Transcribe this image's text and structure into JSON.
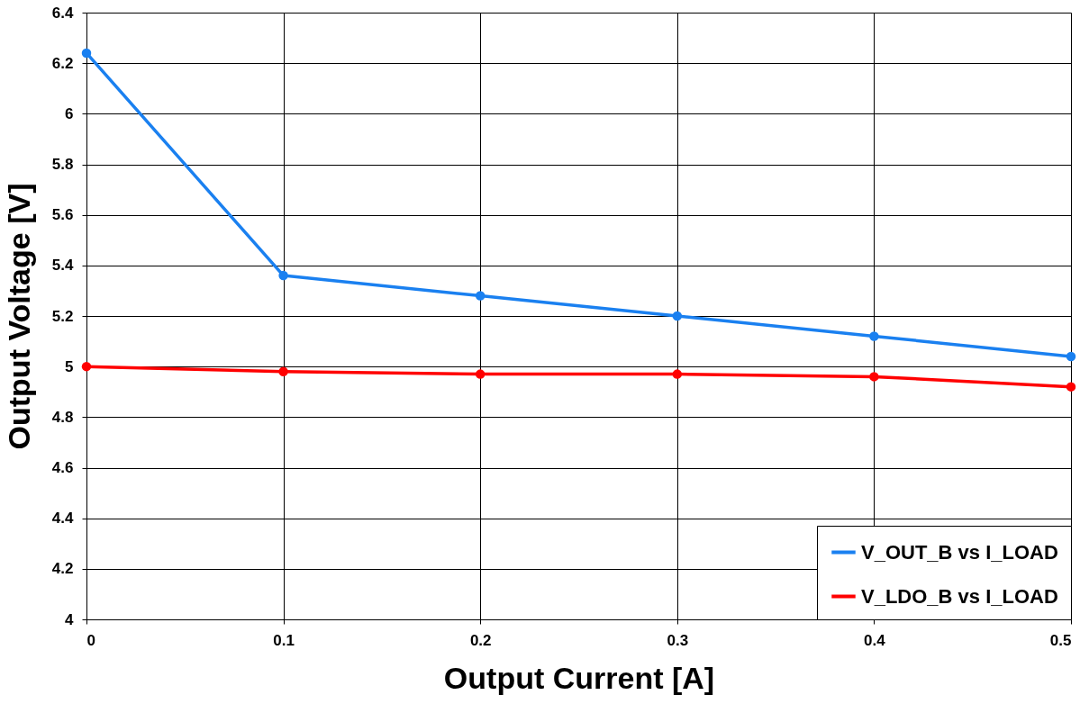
{
  "chart_data": {
    "type": "line",
    "xlabel": "Output Current [A]",
    "ylabel": "Output Voltage [V]",
    "x": [
      0,
      0.1,
      0.2,
      0.3,
      0.4,
      0.5
    ],
    "series": [
      {
        "name": "V_OUT_B vs I_LOAD",
        "color": "#1a80f0",
        "values": [
          6.24,
          5.36,
          5.28,
          5.2,
          5.12,
          5.04
        ]
      },
      {
        "name": "V_LDO_B vs I_LOAD",
        "color": "#ff0000",
        "values": [
          5.0,
          4.98,
          4.97,
          4.97,
          4.96,
          4.92
        ]
      }
    ],
    "xlim": [
      0,
      0.5
    ],
    "xticks": [
      0,
      0.1,
      0.2,
      0.3,
      0.4,
      0.5
    ],
    "ylim": [
      4,
      6.4
    ],
    "yticks": [
      4,
      4.2,
      4.4,
      4.6,
      4.8,
      5,
      5.2,
      5.4,
      5.6,
      5.8,
      6,
      6.2,
      6.4
    ],
    "grid": true,
    "legend": "bottom right",
    "marker": "circle",
    "line_style": "solid"
  }
}
